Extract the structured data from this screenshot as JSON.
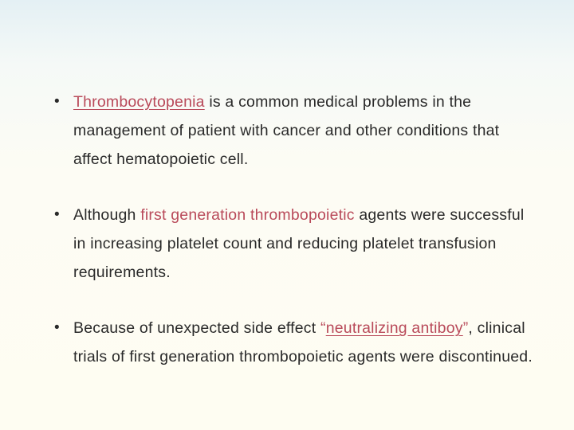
{
  "slide": {
    "background": {
      "gradient_stops": [
        "#e4f0f4",
        "#f5f9f7",
        "#fdfcf4",
        "#fefdf2"
      ]
    },
    "text_color": "#2a2a2a",
    "emphasis_color": "#b94a5a",
    "font_size_pt": 19.5,
    "line_height": 1.85,
    "bullets": [
      {
        "segments": [
          {
            "text": "Thrombocytopenia",
            "emph": true,
            "underline": true
          },
          {
            "text": " is a common medical problems in the management of patient with cancer and other conditions that affect hematopoietic cell."
          }
        ]
      },
      {
        "segments": [
          {
            "text": "Although "
          },
          {
            "text": "first generation thrombopoietic",
            "emph": true
          },
          {
            "text": " agents were successful in increasing platelet count and reducing platelet transfusion requirements."
          }
        ]
      },
      {
        "segments": [
          {
            "text": "Because of unexpected side effect "
          },
          {
            "text": "“",
            "emph": false,
            "quoted_mark": true
          },
          {
            "text": "neutralizing antiboy",
            "emph": true,
            "underline": true
          },
          {
            "text": "”",
            "emph": false,
            "quoted_mark": true
          },
          {
            "text": ", clinical trials of first generation thrombopoietic agents were discontinued."
          }
        ]
      }
    ]
  }
}
